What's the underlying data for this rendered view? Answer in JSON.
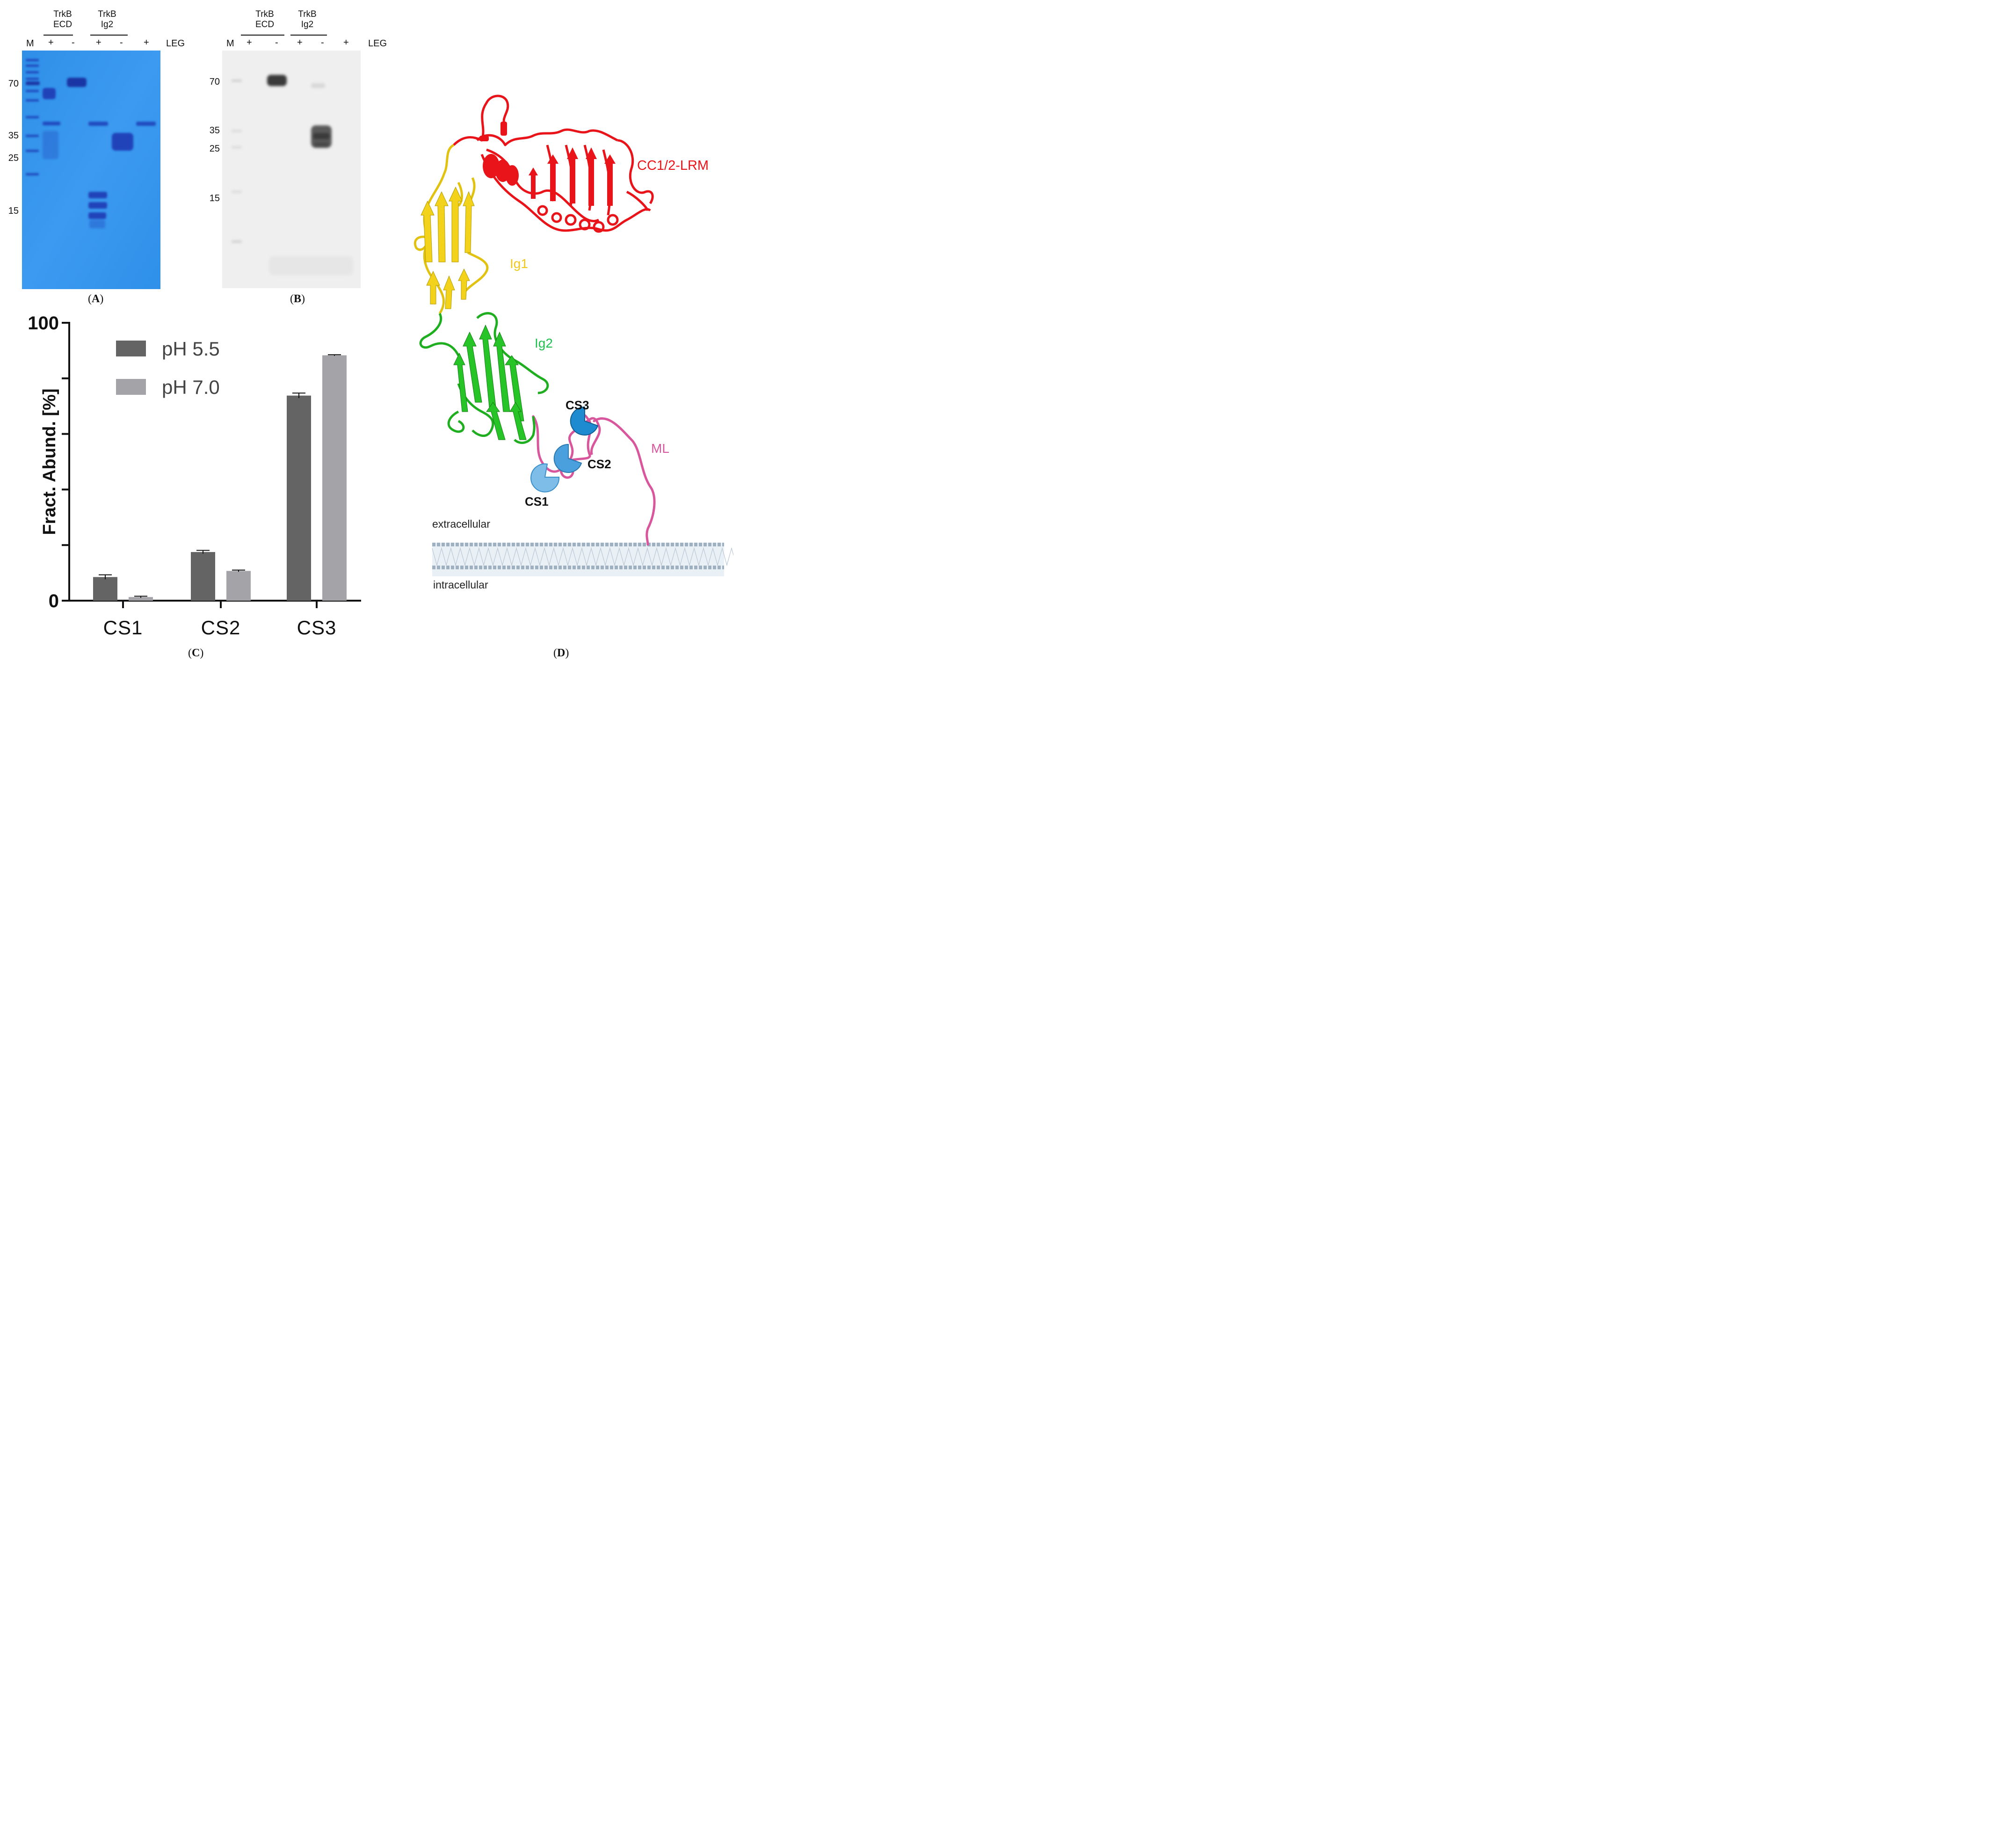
{
  "panel_a": {
    "header": {
      "group1_line1": "TrkB",
      "group1_line2": "ECD",
      "group2_line1": "TrkB",
      "group2_line2": "Ig2",
      "marker": "M",
      "leg": "LEG"
    },
    "lanes": [
      "+",
      "-",
      "+",
      "-",
      "+"
    ],
    "mw_markers": [
      "70",
      "35",
      "25",
      "15"
    ],
    "caption": "A"
  },
  "panel_b": {
    "header": {
      "group1_line1": "TrkB",
      "group1_line2": "ECD",
      "group2_line1": "TrkB",
      "group2_line2": "Ig2",
      "marker": "M",
      "leg": "LEG"
    },
    "lanes": [
      "+",
      "-",
      "+",
      "-",
      "+"
    ],
    "mw_markers": [
      "70",
      "35",
      "25",
      "15"
    ],
    "caption": "B"
  },
  "panel_c": {
    "caption": "C",
    "chart_data": {
      "type": "bar",
      "categories": [
        "CS1",
        "CS2",
        "CS3"
      ],
      "series": [
        {
          "name": "pH 5.5",
          "color": "#646464",
          "values": [
            8.5,
            17.5,
            73.8
          ],
          "errors": [
            0.8,
            0.6,
            0.9
          ]
        },
        {
          "name": "pH 7.0",
          "color": "#a3a3a8",
          "values": [
            1.3,
            10.7,
            88.3
          ],
          "errors": [
            0.3,
            0.3,
            0.2
          ]
        }
      ],
      "ylabel": "Fract. Abund. [%]",
      "ylim": [
        0,
        100
      ],
      "yticks": [
        0,
        20,
        40,
        60,
        80,
        100
      ],
      "ytick_labels": [
        "0",
        "",
        "",
        "",
        "",
        "100"
      ],
      "legend": "top-left"
    }
  },
  "panel_d": {
    "caption": "D",
    "labels": {
      "cc_lrm": "CC1/2-LRM",
      "ig1": "Ig1",
      "ig2": "Ig2",
      "ml": "ML",
      "cs1": "CS1",
      "cs2": "CS2",
      "cs3": "CS3",
      "extracellular": "extracellular",
      "intracellular": "intracellular"
    },
    "colors": {
      "cc_lrm": "#e8141a",
      "ig1": "#f2d21a",
      "ig2": "#27c427",
      "ml": "#d8579c",
      "cs": "#2a8ed0"
    }
  }
}
